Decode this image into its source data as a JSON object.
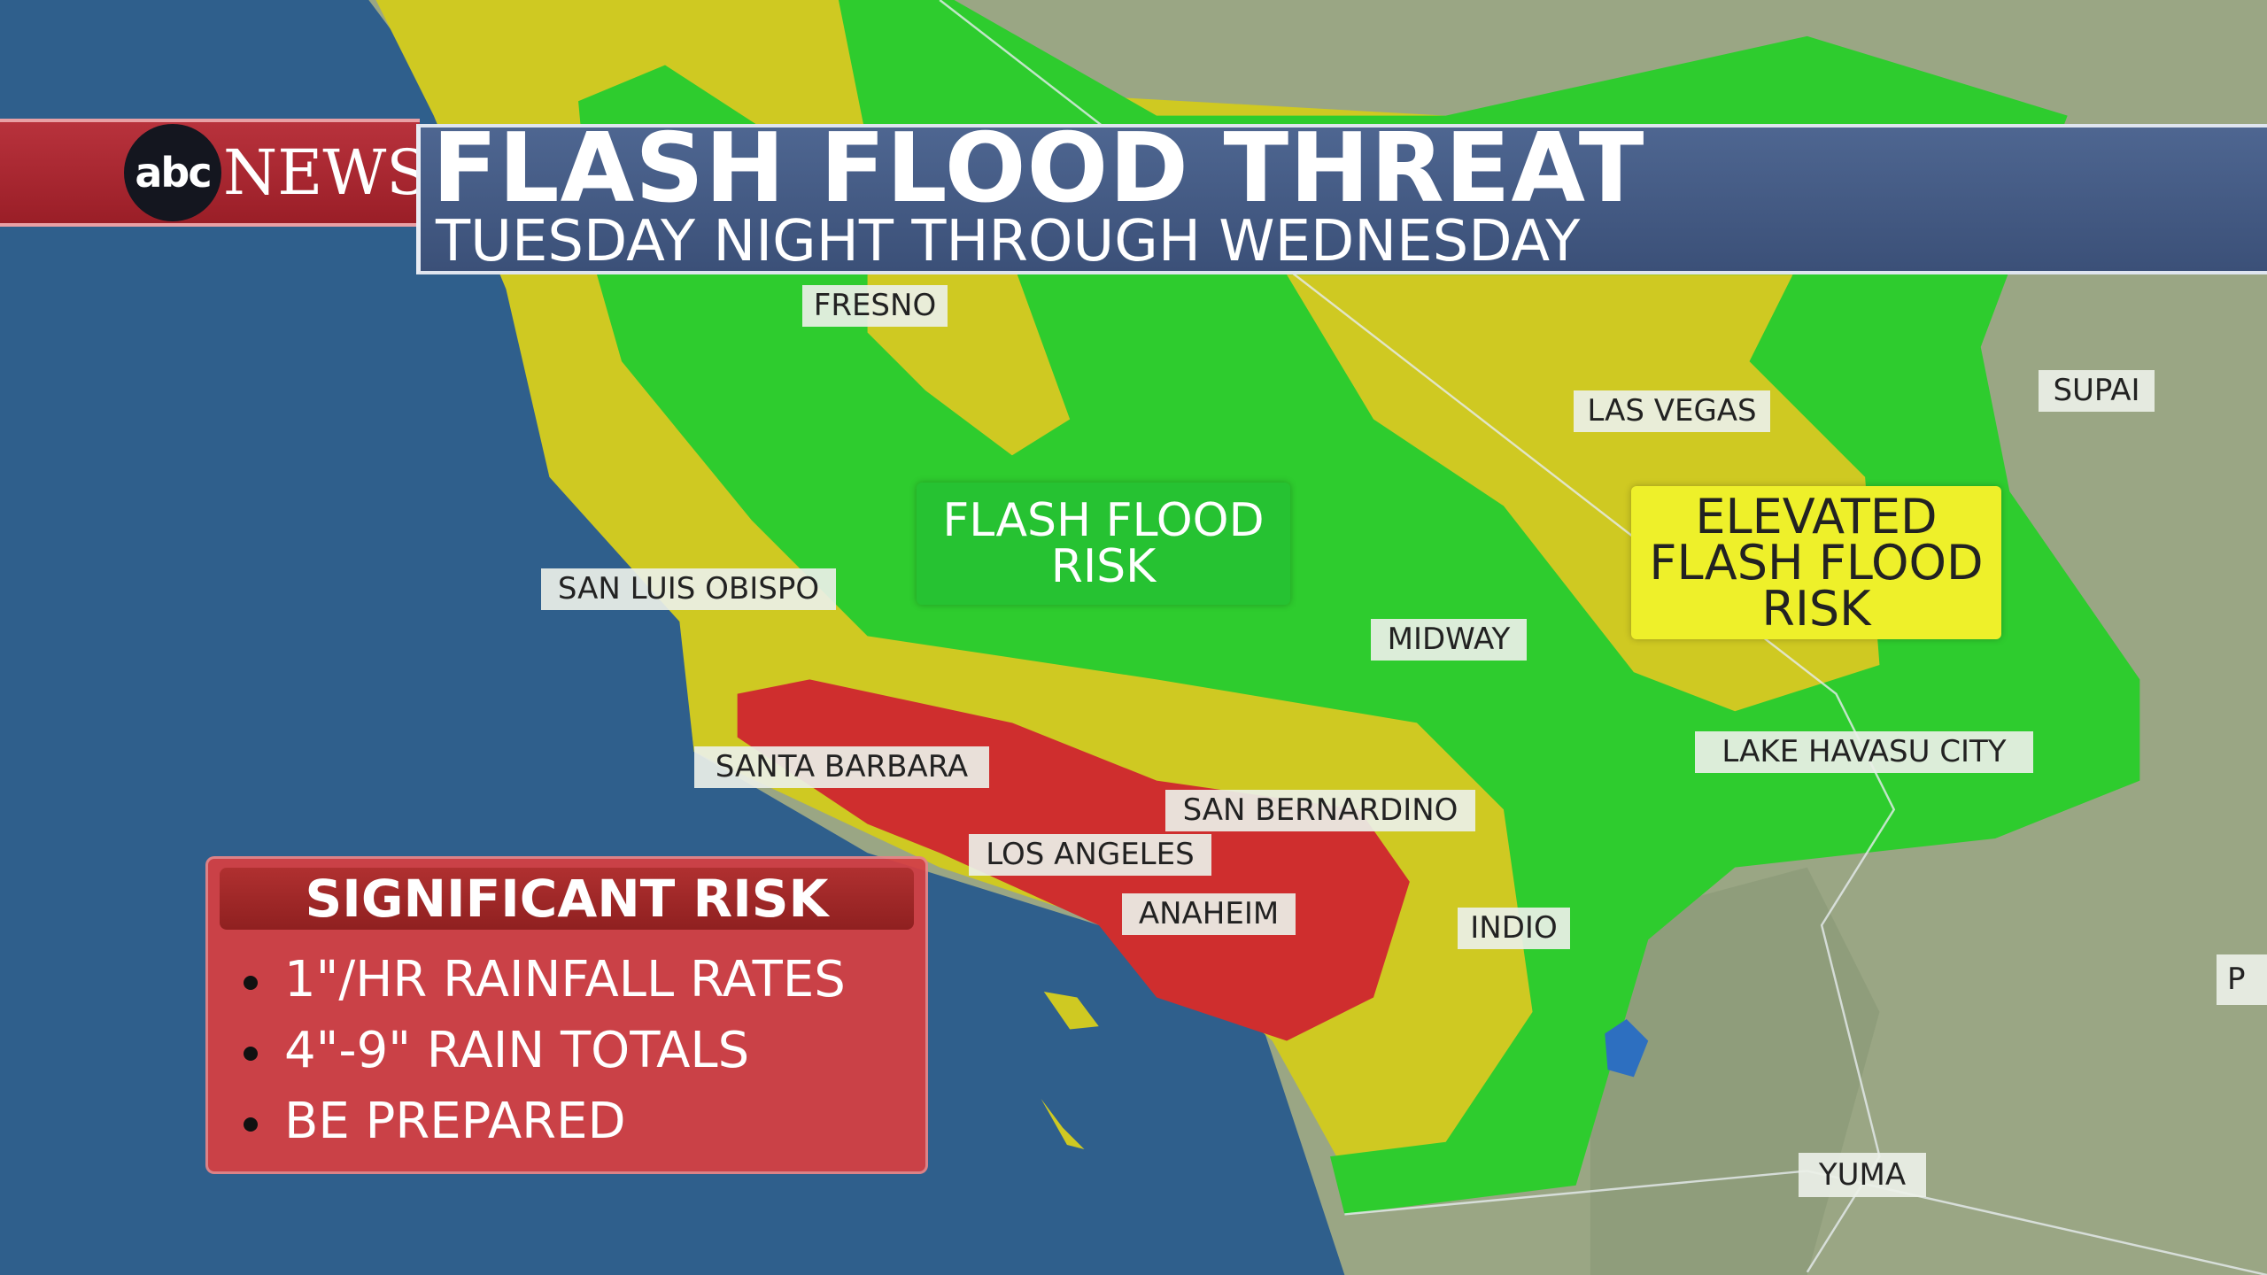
{
  "branding": {
    "logo_abc": "abc",
    "logo_news": "NEWS"
  },
  "header": {
    "title": "FLASH FLOOD THREAT",
    "subtitle": "TUESDAY NIGHT THROUGH WEDNESDAY"
  },
  "map": {
    "colors": {
      "ocean": "#2f5f8c",
      "land": "#9aa684",
      "flash_flood_risk": "#2ecc2e",
      "elevated_risk": "#d6d21e",
      "significant_risk": "#cf2e2e"
    },
    "zones": {
      "green_label": "FLASH FLOOD RISK",
      "green_label_line1": "FLASH FLOOD",
      "green_label_line2": "RISK",
      "yellow_label_line1": "ELEVATED",
      "yellow_label_line2": "FLASH FLOOD",
      "yellow_label_line3": "RISK"
    },
    "cities": [
      "FRESNO",
      "LAS VEGAS",
      "SUPAI",
      "SAN LUIS OBISPO",
      "MIDWAY",
      "SANTA BARBARA",
      "SAN BERNARDINO",
      "LOS ANGELES",
      "ANAHEIM",
      "INDIO",
      "LAKE HAVASU CITY",
      "YUMA",
      "P"
    ]
  },
  "legend": {
    "title": "SIGNIFICANT RISK",
    "bullets": [
      "1\"/HR RAINFALL RATES",
      "4\"-9\" RAIN TOTALS",
      "BE PREPARED"
    ]
  }
}
